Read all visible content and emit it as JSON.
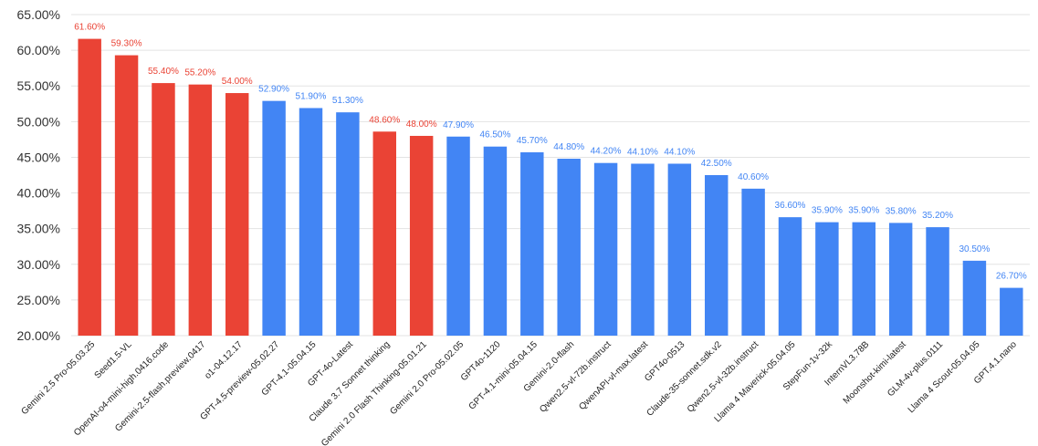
{
  "chart_data": {
    "type": "bar",
    "ylim": [
      20,
      65
    ],
    "yticks": [
      20,
      25,
      30,
      35,
      40,
      45,
      50,
      55,
      60,
      65
    ],
    "ytick_labels": [
      "20.00%",
      "25.00%",
      "30.00%",
      "35.00%",
      "40.00%",
      "45.00%",
      "50.00%",
      "55.00%",
      "60.00%",
      "65.00%"
    ],
    "grid": true,
    "colors": {
      "red": "#ea4335",
      "blue": "#4285f4"
    },
    "bars": [
      {
        "category": "Gemini 2.5 Pro-05.03.25",
        "value": 61.6,
        "label": "61.60%",
        "color": "red"
      },
      {
        "category": "Seed1.5-VL",
        "value": 59.3,
        "label": "59.30%",
        "color": "red"
      },
      {
        "category": "OpenAI-o4-mini-high.0416.code",
        "value": 55.4,
        "label": "55.40%",
        "color": "red"
      },
      {
        "category": "Gemini-2.5-flash.preview.0417",
        "value": 55.2,
        "label": "55.20%",
        "color": "red"
      },
      {
        "category": "o1-04.12.17",
        "value": 54.0,
        "label": "54.00%",
        "color": "red"
      },
      {
        "category": "GPT-4.5-preview-05.02.27",
        "value": 52.9,
        "label": "52.90%",
        "color": "blue"
      },
      {
        "category": "GPT-4.1-05.04.15",
        "value": 51.9,
        "label": "51.90%",
        "color": "blue"
      },
      {
        "category": "GPT-4o-Latest",
        "value": 51.3,
        "label": "51.30%",
        "color": "blue"
      },
      {
        "category": "Claude 3.7 Sonnet thinking",
        "value": 48.6,
        "label": "48.60%",
        "color": "red"
      },
      {
        "category": "Gemini 2.0 Flash Thinking-05.01.21",
        "value": 48.0,
        "label": "48.00%",
        "color": "red"
      },
      {
        "category": "Gemini 2.0 Pro-05.02.05",
        "value": 47.9,
        "label": "47.90%",
        "color": "blue"
      },
      {
        "category": "GPT4o-1120",
        "value": 46.5,
        "label": "46.50%",
        "color": "blue"
      },
      {
        "category": "GPT-4.1-mini-05.04.15",
        "value": 45.7,
        "label": "45.70%",
        "color": "blue"
      },
      {
        "category": "Gemini-2.0-flash",
        "value": 44.8,
        "label": "44.80%",
        "color": "blue"
      },
      {
        "category": "Qwen2.5-vl-72b.instruct",
        "value": 44.2,
        "label": "44.20%",
        "color": "blue"
      },
      {
        "category": "QwenAPI-vl-max.latest",
        "value": 44.1,
        "label": "44.10%",
        "color": "blue"
      },
      {
        "category": "GPT4o-0513",
        "value": 44.1,
        "label": "44.10%",
        "color": "blue"
      },
      {
        "category": "Claude-35-sonnet.sdk.v2",
        "value": 42.5,
        "label": "42.50%",
        "color": "blue"
      },
      {
        "category": "Qwen2.5-vl-32b.instruct",
        "value": 40.6,
        "label": "40.60%",
        "color": "blue"
      },
      {
        "category": "Llama 4 Maverick-05.04.05",
        "value": 36.6,
        "label": "36.60%",
        "color": "blue"
      },
      {
        "category": "StepFun-1v-32k",
        "value": 35.9,
        "label": "35.90%",
        "color": "blue"
      },
      {
        "category": "InternVL3.78B",
        "value": 35.9,
        "label": "35.90%",
        "color": "blue"
      },
      {
        "category": "Moonshot-kimi-latest",
        "value": 35.8,
        "label": "35.80%",
        "color": "blue"
      },
      {
        "category": "GLM-4v-plus.0111",
        "value": 35.2,
        "label": "35.20%",
        "color": "blue"
      },
      {
        "category": "Llama 4 Scout-05.04.05",
        "value": 30.5,
        "label": "30.50%",
        "color": "blue"
      },
      {
        "category": "GPT.4.1.nano",
        "value": 26.7,
        "label": "26.70%",
        "color": "blue"
      }
    ]
  }
}
